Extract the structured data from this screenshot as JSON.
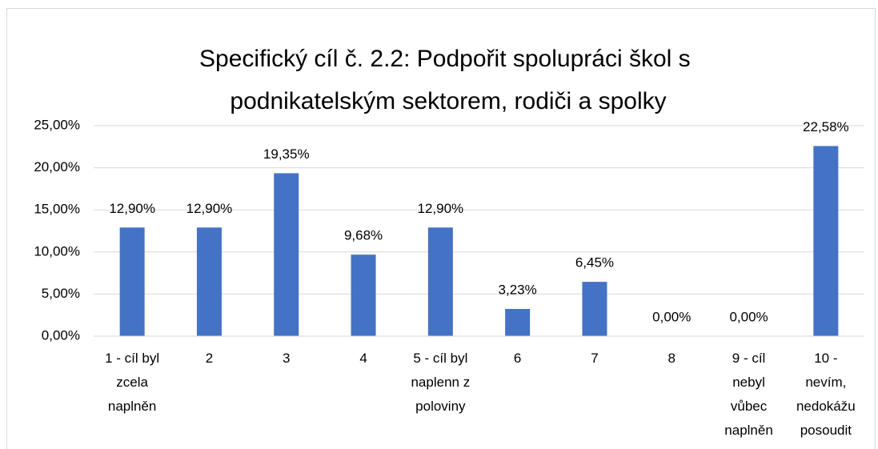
{
  "chart_data": {
    "type": "bar",
    "title": "Specifický cíl č. 2.2: Podpořit spolupráci škol s podnikatelským sektorem, rodiči a spolky",
    "categories": [
      "1 - cíl byl zcela naplněn",
      "2",
      "3",
      "4",
      "5 - cíl byl naplenn z poloviny",
      "6",
      "7",
      "8",
      "9 - cíl nebyl vůbec naplněn",
      "10 - nevím, nedokážu posoudit"
    ],
    "values": [
      12.9,
      12.9,
      19.35,
      9.68,
      12.9,
      3.23,
      6.45,
      0,
      0,
      22.58
    ],
    "value_labels": [
      "12,90%",
      "12,90%",
      "19,35%",
      "9,68%",
      "12,90%",
      "3,23%",
      "6,45%",
      "0,00%",
      "0,00%",
      "22,58%"
    ],
    "color": "#4472c4",
    "ylim": [
      0,
      25
    ],
    "yticks": [
      {
        "value": 0,
        "label": "0,00%"
      },
      {
        "value": 5,
        "label": "5,00%"
      },
      {
        "value": 10,
        "label": "10,00%"
      },
      {
        "value": 15,
        "label": "15,00%"
      },
      {
        "value": 20,
        "label": "20,00%"
      },
      {
        "value": 25,
        "label": "25,00%"
      }
    ],
    "grid": true
  }
}
